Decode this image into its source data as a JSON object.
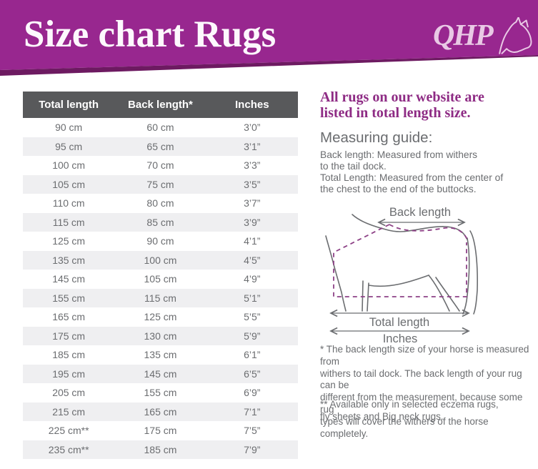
{
  "colors": {
    "banner": "#98278f",
    "banner_dark": "#6d1a61",
    "accent_purple": "#8e2b84",
    "table_header_bg": "#58595b",
    "row_alt": "#efeff1",
    "text_gray": "#6b6d70",
    "dash_purple": "#8d4186",
    "logo_pink": "#e9c9e5"
  },
  "header": {
    "title": "Size chart Rugs",
    "logo_text": "QHP"
  },
  "table": {
    "columns": [
      "Total length",
      "Back length*",
      "Inches"
    ],
    "rows": [
      [
        "90 cm",
        "60 cm",
        "3’0”"
      ],
      [
        "95 cm",
        "65 cm",
        "3’1”"
      ],
      [
        "100 cm",
        "70 cm",
        "3’3”"
      ],
      [
        "105 cm",
        "75 cm",
        "3’5”"
      ],
      [
        "110 cm",
        "80 cm",
        "3’7”"
      ],
      [
        "115 cm",
        "85 cm",
        "3’9”"
      ],
      [
        "125 cm",
        "90 cm",
        "4’1”"
      ],
      [
        "135 cm",
        "100 cm",
        "4’5”"
      ],
      [
        "145 cm",
        "105 cm",
        "4’9”"
      ],
      [
        "155 cm",
        "115 cm",
        "5’1”"
      ],
      [
        "165 cm",
        "125 cm",
        "5’5”"
      ],
      [
        "175 cm",
        "130 cm",
        "5’9”"
      ],
      [
        "185 cm",
        "135 cm",
        "6’1”"
      ],
      [
        "195 cm",
        "145 cm",
        "6’5”"
      ],
      [
        "205 cm",
        "155 cm",
        "6’9”"
      ],
      [
        "215 cm",
        "165 cm",
        "7’1”"
      ],
      [
        "225 cm**",
        "175 cm",
        "7’5”"
      ],
      [
        "235 cm**",
        "185 cm",
        "7’9”"
      ]
    ]
  },
  "sidebar": {
    "intro_heading": "All rugs on our website are\nlisted in total length size.",
    "guide_heading": "Measuring guide:",
    "guide_body": "Back length: Measured from withers\nto the tail dock.\nTotal Length: Measured from the center of\nthe chest to the end of the buttocks.",
    "figure": {
      "back_length_label": "Back length",
      "total_length_label": "Total length",
      "inches_label": "Inches"
    },
    "footnote_one": "* The back length size of your horse is measured from\nwithers to tail dock. The back length of your rug can be\ndifferent from the measurement, because some rug\ntypes will cover the withers of the horse completely.",
    "footnote_two": "** Available only in selected eczema rugs,\nfly sheets and Big neck rugs."
  }
}
